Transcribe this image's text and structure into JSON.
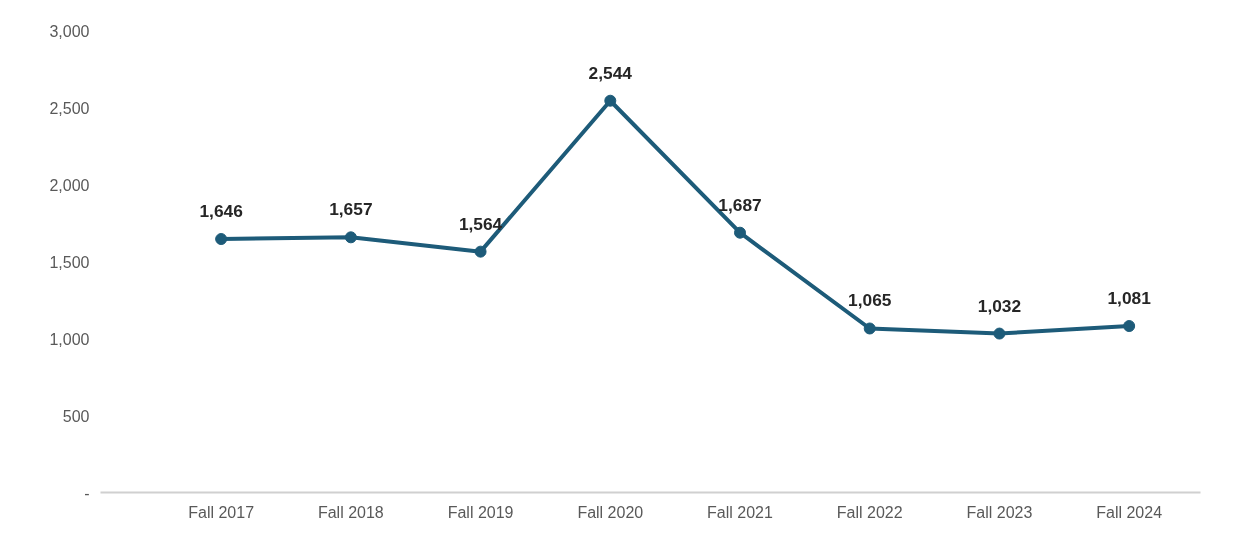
{
  "chart_data": {
    "type": "line",
    "categories": [
      "Fall 2017",
      "Fall 2018",
      "Fall 2019",
      "Fall 2020",
      "Fall 2021",
      "Fall 2022",
      "Fall 2023",
      "Fall 2024"
    ],
    "series": [
      {
        "color": "#1d5b79",
        "values": [
          1646,
          1657,
          1564,
          2544,
          1687,
          1065,
          1032,
          1081
        ],
        "value_labels": [
          "1,646",
          "1,657",
          "1,564",
          "2,544",
          "1,687",
          "1,065",
          "1,032",
          "1,081"
        ]
      }
    ],
    "ylim": [
      0,
      3000
    ],
    "yticks": [
      {
        "value": 0,
        "label": "-"
      },
      {
        "value": 500,
        "label": "500"
      },
      {
        "value": 1000,
        "label": "1,000"
      },
      {
        "value": 1500,
        "label": "1,500"
      },
      {
        "value": 2000,
        "label": "2,000"
      },
      {
        "value": 2500,
        "label": "2,500"
      },
      {
        "value": 3000,
        "label": "3,000"
      }
    ],
    "grid": false,
    "marker": "circle",
    "line_style": "solid"
  }
}
